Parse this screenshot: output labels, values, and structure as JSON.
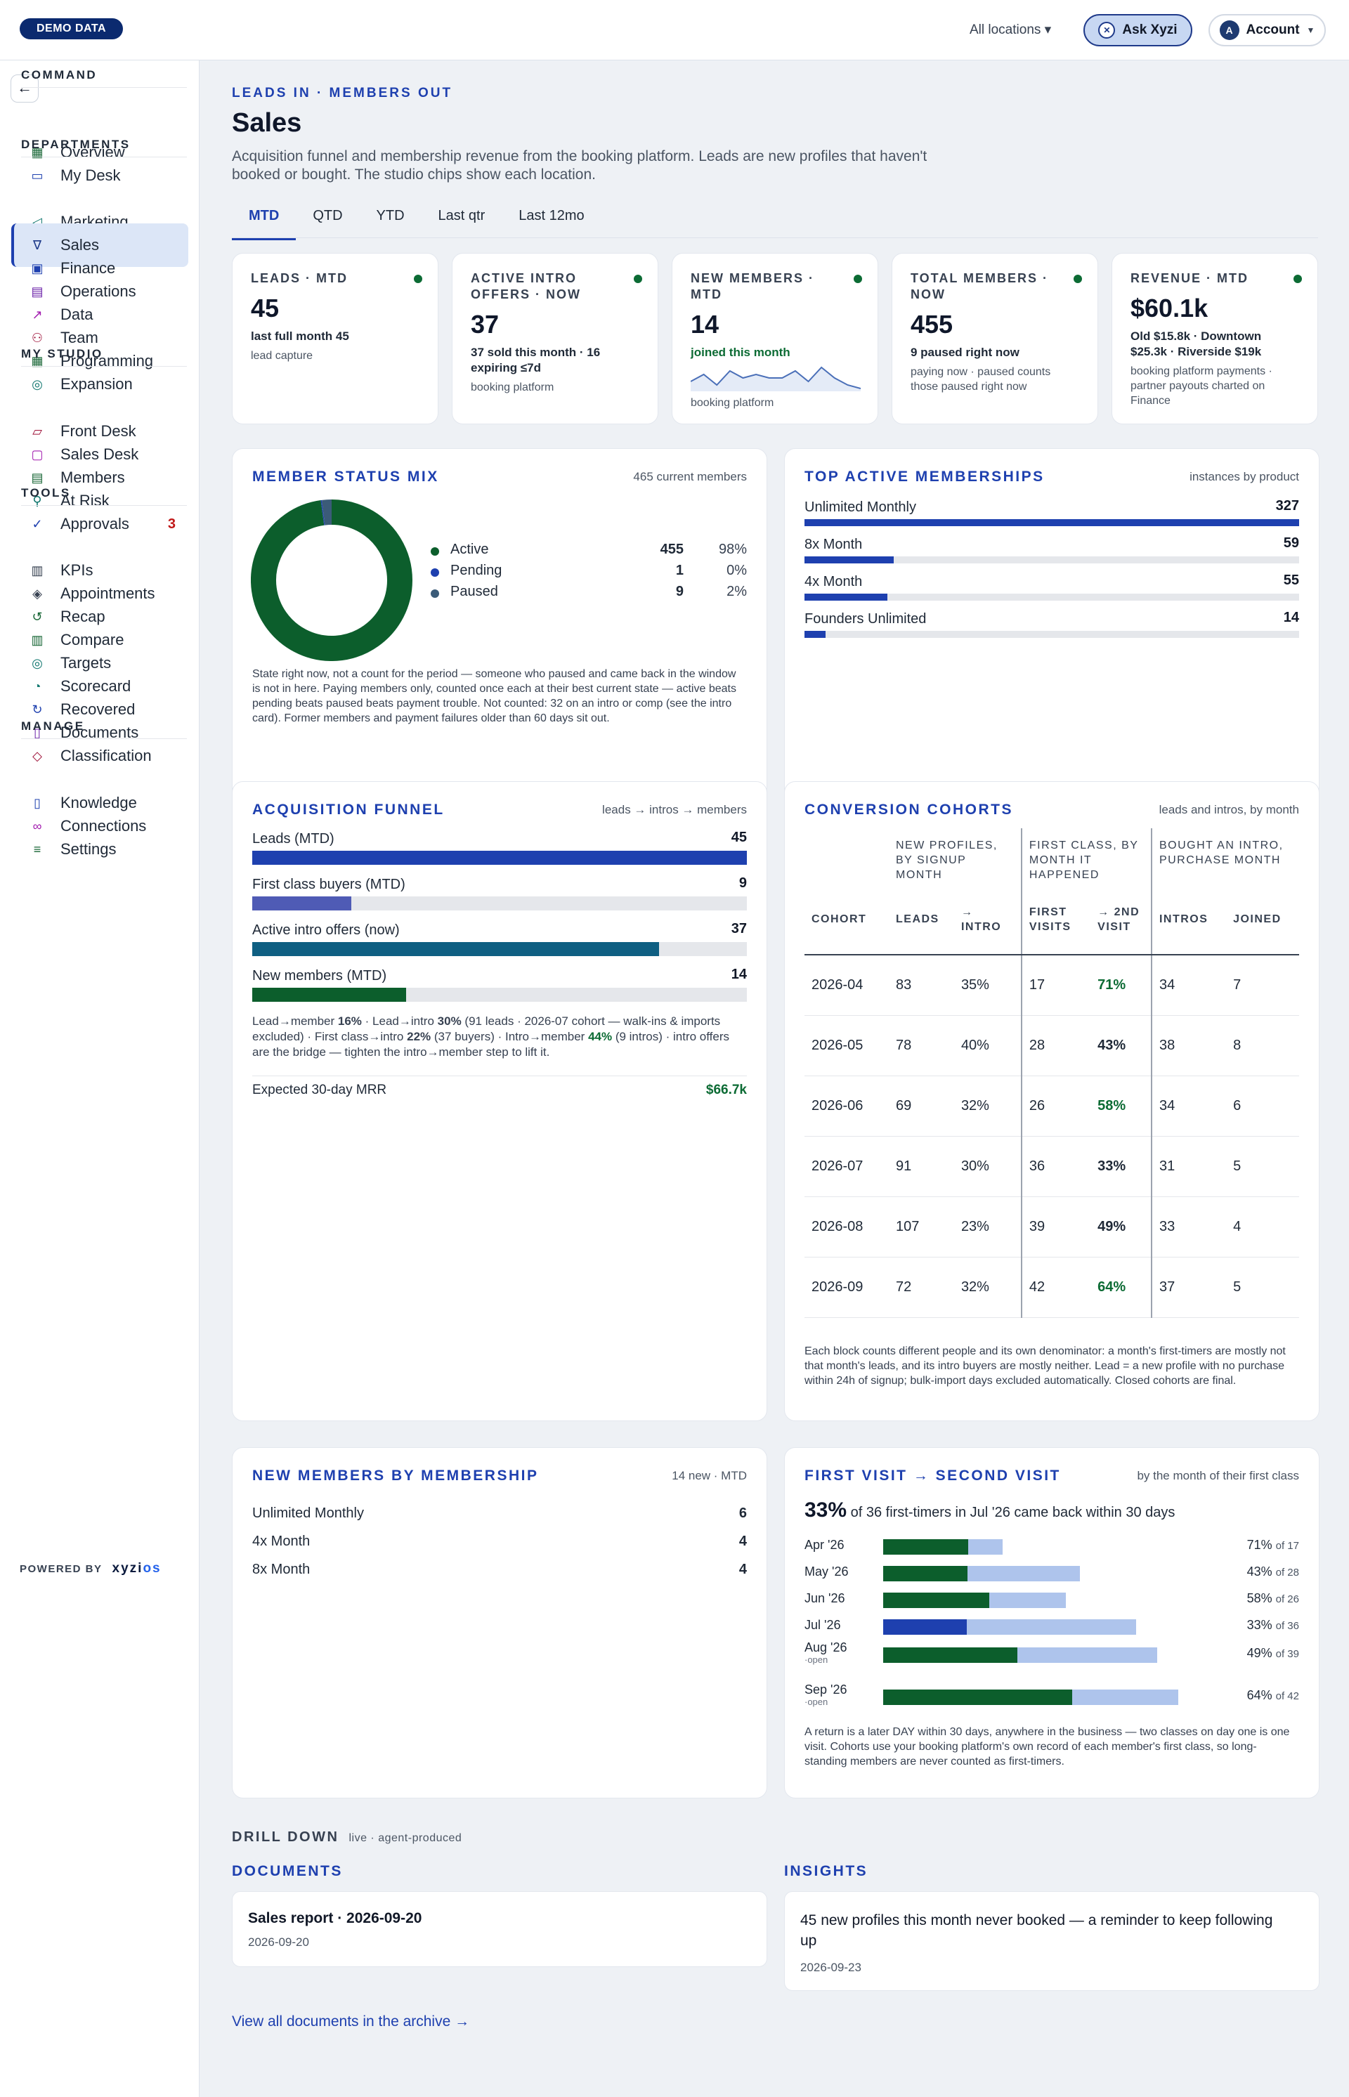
{
  "topbar": {
    "badge": "DEMO DATA",
    "locations": "All locations ▾",
    "ask": "Ask Xyzi",
    "account": "Account",
    "account_initial": "A"
  },
  "sidebar": {
    "sections": [
      {
        "title": "COMMAND",
        "items": [
          {
            "label": "Overview",
            "icon": "grid-icon"
          },
          {
            "label": "My Desk",
            "icon": "inbox-icon"
          }
        ]
      },
      {
        "title": "DEPARTMENTS",
        "items": [
          {
            "label": "Marketing",
            "icon": "megaphone-icon"
          },
          {
            "label": "Sales",
            "icon": "funnel-icon",
            "active": true
          },
          {
            "label": "Finance",
            "icon": "money-icon"
          },
          {
            "label": "Operations",
            "icon": "clipboard-icon"
          },
          {
            "label": "Data",
            "icon": "chart-line-icon"
          },
          {
            "label": "Team",
            "icon": "people-icon"
          },
          {
            "label": "Programming",
            "icon": "calendar-icon"
          },
          {
            "label": "Expansion",
            "icon": "compass-icon"
          }
        ]
      },
      {
        "title": "MY STUDIO",
        "items": [
          {
            "label": "Front Desk",
            "icon": "desk-icon"
          },
          {
            "label": "Sales Desk",
            "icon": "chat-icon"
          },
          {
            "label": "Members",
            "icon": "id-card-icon"
          },
          {
            "label": "At Risk",
            "icon": "person-alert-icon"
          },
          {
            "label": "Approvals",
            "icon": "check-circle-icon",
            "badge": "3"
          }
        ]
      },
      {
        "title": "TOOLS",
        "items": [
          {
            "label": "KPIs",
            "icon": "bar-chart-icon"
          },
          {
            "label": "Appointments",
            "icon": "layers-icon"
          },
          {
            "label": "Recap",
            "icon": "recap-icon"
          },
          {
            "label": "Compare",
            "icon": "columns-icon"
          },
          {
            "label": "Targets",
            "icon": "target-icon"
          },
          {
            "label": "Scorecard",
            "icon": "gauge-icon"
          },
          {
            "label": "Recovered",
            "icon": "recover-icon"
          },
          {
            "label": "Documents",
            "icon": "document-icon"
          },
          {
            "label": "Classification",
            "icon": "tag-icon"
          }
        ]
      },
      {
        "title": "MANAGE",
        "items": [
          {
            "label": "Knowledge",
            "icon": "book-icon"
          },
          {
            "label": "Connections",
            "icon": "link-icon"
          },
          {
            "label": "Settings",
            "icon": "sliders-icon"
          }
        ]
      }
    ],
    "powered_by": "POWERED BY",
    "brand_a": "xyzi",
    "brand_b": "os"
  },
  "page": {
    "eyebrow": "LEADS IN · MEMBERS OUT",
    "title": "Sales",
    "subtitle": "Acquisition funnel and membership revenue from the booking platform. Leads are new profiles that haven't booked or bought. The studio chips show each location.",
    "tabs": [
      "MTD",
      "QTD",
      "YTD",
      "Last qtr",
      "Last 12mo"
    ],
    "active_tab": 0
  },
  "kpis": [
    {
      "label": "LEADS · MTD",
      "value": "45",
      "sub": "last full month 45",
      "note": "lead capture"
    },
    {
      "label": "ACTIVE INTRO OFFERS · NOW",
      "value": "37",
      "sub": "37 sold this month · 16 expiring ≤7d",
      "note": "booking platform"
    },
    {
      "label": "NEW MEMBERS · MTD",
      "value": "14",
      "sub": "joined this month",
      "note": "booking platform",
      "sparkline": [
        3,
        5,
        2,
        6,
        4,
        5,
        4,
        4,
        6,
        3,
        7,
        4,
        2,
        1
      ]
    },
    {
      "label": "TOTAL MEMBERS · NOW",
      "value": "455",
      "sub": "9 paused right now",
      "note": "paying now · paused counts those paused right now"
    },
    {
      "label": "REVENUE · MTD",
      "value": "$60.1k",
      "sub": "Old $15.8k · Downtown $25.3k · Riverside $19k",
      "note": "booking platform payments · partner payouts charted on Finance"
    }
  ],
  "status_mix": {
    "title": "MEMBER STATUS MIX",
    "right": "465 current members",
    "rows": [
      {
        "label": "Active",
        "count": "455",
        "pct": "98%",
        "color": "#0c5e2c"
      },
      {
        "label": "Pending",
        "count": "1",
        "pct": "0%",
        "color": "#1e40af"
      },
      {
        "label": "Paused",
        "count": "9",
        "pct": "2%",
        "color": "#3b5b78"
      }
    ],
    "note": "State right now, not a count for the period — someone who paused and came back in the window is not in here. Paying members only, counted once each at their best current state — active beats pending beats paused beats payment trouble. Not counted: 32 on an intro or comp (see the intro card). Former members and payment failures older than 60 days sit out."
  },
  "top_memberships": {
    "title": "TOP ACTIVE MEMBERSHIPS",
    "right": "instances by product",
    "rows": [
      {
        "label": "Unlimited Monthly",
        "value": 327
      },
      {
        "label": "8x Month",
        "value": 59
      },
      {
        "label": "4x Month",
        "value": 55
      },
      {
        "label": "Founders Unlimited",
        "value": 14
      }
    ]
  },
  "funnel": {
    "title": "ACQUISITION FUNNEL",
    "right": "leads → intros → members",
    "rows": [
      {
        "label": "Leads (MTD)",
        "value": 45,
        "color": "#1e40af"
      },
      {
        "label": "First class buyers (MTD)",
        "value": 9,
        "color": "#4f5bb5"
      },
      {
        "label": "Active intro offers (now)",
        "value": 37,
        "color": "#0f5f82"
      },
      {
        "label": "New members (MTD)",
        "value": 14,
        "color": "#0c5e2c"
      }
    ],
    "note_a": "Lead→member ",
    "note_b": "16%",
    "note_c": " · Lead→intro ",
    "note_d": "30%",
    "note_e": " (91 leads · 2026-07 cohort — walk-ins & imports excluded) · First class→intro ",
    "note_f": "22%",
    "note_g": " (37 buyers) · Intro→member ",
    "note_h": "44%",
    "note_i": " (9 intros) · intro offers are the bridge — tighten the intro→member step to lift it.",
    "mrr_label": "Expected 30-day MRR",
    "mrr_value": "$66.7k"
  },
  "cohorts": {
    "title": "CONVERSION COHORTS",
    "right": "leads and intros, by month",
    "groups": [
      "NEW PROFILES, BY SIGNUP MONTH",
      "FIRST CLASS, BY MONTH IT HAPPENED",
      "BOUGHT AN INTRO, PURCHASE MONTH"
    ],
    "columns": [
      "COHORT",
      "LEADS",
      "→ INTRO",
      "FIRST VISITS",
      "→ 2ND VISIT",
      "INTROS",
      "JOINED"
    ],
    "rows": [
      [
        "2026-04",
        "83",
        "35%",
        "17",
        "71%",
        "34",
        "7"
      ],
      [
        "2026-05",
        "78",
        "40%",
        "28",
        "43%",
        "38",
        "8"
      ],
      [
        "2026-06",
        "69",
        "32%",
        "26",
        "58%",
        "34",
        "6"
      ],
      [
        "2026-07",
        "91",
        "30%",
        "36",
        "33%",
        "31",
        "5"
      ],
      [
        "2026-08",
        "107",
        "23%",
        "39",
        "49%",
        "33",
        "4"
      ],
      [
        "2026-09",
        "72",
        "32%",
        "42",
        "64%",
        "37",
        "5"
      ]
    ],
    "highlight": [
      true,
      false,
      true,
      false,
      false,
      true
    ],
    "note": "Each block counts different people and its own denominator: a month's first-timers are mostly not that month's leads, and its intro buyers are mostly neither. Lead = a new profile with no purchase within 24h of signup; bulk-import days excluded automatically. Closed cohorts are final."
  },
  "new_by_membership": {
    "title": "NEW MEMBERS BY MEMBERSHIP",
    "right": "14 new · MTD",
    "rows": [
      {
        "label": "Unlimited Monthly",
        "value": "6"
      },
      {
        "label": "4x Month",
        "value": "4"
      },
      {
        "label": "8x Month",
        "value": "4"
      }
    ]
  },
  "first_second": {
    "title": "FIRST VISIT → SECOND VISIT",
    "right": "by the month of their first class",
    "headline_pct": "33%",
    "headline_text": "of 36 first-timers in Jul '26 came back within 30 days",
    "rows": [
      {
        "month": "Apr '26",
        "open": "",
        "pct": 71,
        "pct_label": "71%",
        "of": "of 17",
        "base": 17,
        "color": "#0c5e2c"
      },
      {
        "month": "May '26",
        "open": "",
        "pct": 43,
        "pct_label": "43%",
        "of": "of 28",
        "base": 28,
        "color": "#0c5e2c"
      },
      {
        "month": "Jun '26",
        "open": "",
        "pct": 58,
        "pct_label": "58%",
        "of": "of 26",
        "base": 26,
        "color": "#0c5e2c"
      },
      {
        "month": "Jul '26",
        "open": "",
        "pct": 33,
        "pct_label": "33%",
        "of": "of 36",
        "base": 36,
        "color": "#1e40af"
      },
      {
        "month": "Aug '26",
        "open": "·open",
        "pct": 49,
        "pct_label": "49%",
        "of": "of 39",
        "base": 39,
        "color": "#0c5e2c"
      },
      {
        "month": "Sep '26",
        "open": "·open",
        "pct": 64,
        "pct_label": "64%",
        "of": "of 42",
        "base": 42,
        "color": "#0c5e2c"
      }
    ],
    "note": "A return is a later DAY within 30 days, anywhere in the business — two classes on day one is one visit. Cohorts use your booking platform's own record of each member's first class, so long-standing members are never counted as first-timers."
  },
  "drill": {
    "title": "DRILL DOWN",
    "tag": "live · agent-produced",
    "docs_title": "DOCUMENTS",
    "doc_name": "Sales report · 2026-09-20",
    "doc_date": "2026-09-20",
    "insights_title": "INSIGHTS",
    "insight_text": "45 new profiles this month never booked — a reminder to keep following up",
    "insight_date": "2026-09-23",
    "archive_link": "View all documents in the archive →"
  }
}
